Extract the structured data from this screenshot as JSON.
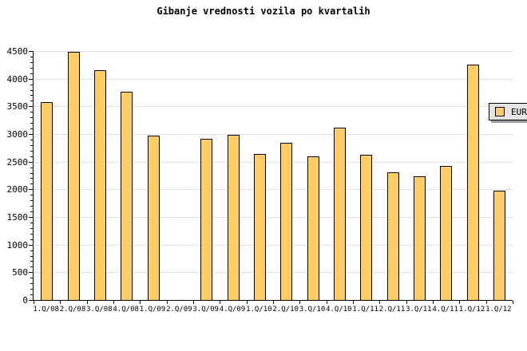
{
  "title": "Gibanje vrednosti vozila po kvartalih",
  "legend": {
    "label": "EUR",
    "swatch_color": "#FFCC66"
  },
  "colors": {
    "bar_fill": "#FFCC66",
    "bar_border": "#000000",
    "grid": "#E0E0E0",
    "axis": "#000000",
    "legend_bg": "#E3E3E3",
    "background": "#FFFFFF"
  },
  "chart_data": {
    "type": "bar",
    "title": "Gibanje vrednosti vozila po kvartalih",
    "series_name": "EUR",
    "categories": [
      "1.Q/08",
      "2.Q/08",
      "3.Q/08",
      "4.Q/08",
      "1.Q/09",
      "2.Q/09",
      "3.Q/09",
      "4.Q/09",
      "1.Q/10",
      "2.Q/10",
      "3.Q/10",
      "4.Q/10",
      "1.Q/11",
      "2.Q/11",
      "3.Q/11",
      "4.Q/11",
      "1.Q/12",
      "1.Q/12"
    ],
    "values": [
      3580,
      4490,
      4160,
      3770,
      2970,
      null,
      2910,
      2980,
      2640,
      2840,
      2590,
      3110,
      2630,
      2310,
      2240,
      2430,
      4250,
      1980
    ],
    "missing_categories": [
      "2.Q/09"
    ],
    "note_top_bar": "1.Q/12 bar top hidden behind legend box",
    "xlabel": "",
    "ylabel": "",
    "ylim": [
      0,
      4500
    ],
    "ytick_step": 500,
    "yminor_step": 100,
    "ytick_labels": [
      "0",
      "500",
      "1000",
      "1500",
      "2000",
      "2500",
      "3000",
      "3500",
      "4000",
      "4500"
    ],
    "grid": "horizontal-major-only",
    "legend_position": "top-right",
    "legend_label": "EUR"
  }
}
